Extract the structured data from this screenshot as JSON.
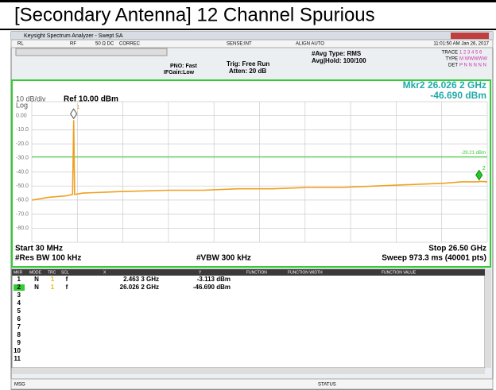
{
  "title": "[Secondary Antenna] 12 Channel Spurious",
  "window_title": "Keysight Spectrum Analyzer - Swept SA",
  "toolbar": [
    "RL",
    "RF",
    "50 Ω  DC",
    "CORREC",
    "SENSE:INT",
    "ALIGN AUTO",
    "11:01:50 AM Jan 26, 2017"
  ],
  "settings": {
    "pno": "PNO: Fast",
    "ifgain": "IFGain:Low",
    "trig": "Trig: Free Run",
    "atten": "Atten: 20 dB",
    "avg_type": "#Avg Type: RMS",
    "avg_hold": "Avg|Hold: 100/100"
  },
  "trace_info": {
    "trace": "TRACE",
    "trace_val": "1 2 3 4 5 6",
    "type": "TYPE",
    "type_val": "M WWWWW",
    "det": "DET",
    "det_val": "P N N N N N"
  },
  "chart_data": {
    "type": "line",
    "scale": "10 dB/div",
    "ref": "Ref 10.00 dBm",
    "log": "Log",
    "marker_readout": [
      "Mkr2 26.026 2 GHz",
      "-46.690 dBm"
    ],
    "x": [
      0.03,
      1,
      2,
      2.4,
      2.463,
      2.52,
      3,
      5,
      8,
      10,
      12,
      14,
      16,
      18,
      20,
      22,
      24,
      25,
      26,
      26.026,
      26.5
    ],
    "series": [
      {
        "color": "#f0a020",
        "values": [
          -60,
          -58,
          -57,
          -56,
          -3.113,
          -56,
          -55,
          -54,
          -53,
          -53,
          -52,
          -52,
          -51,
          -51,
          -50,
          -49,
          -48,
          -47,
          -47,
          -46.69,
          -47
        ]
      }
    ],
    "xlim": [
      0.03,
      26.5
    ],
    "ylim": [
      -90,
      10
    ],
    "yticks": [
      {
        "value": 0,
        "label": "0.00"
      },
      {
        "value": -10,
        "label": "-10.0"
      },
      {
        "value": -20,
        "label": "-20.0"
      },
      {
        "value": -30,
        "label": "-30.0"
      },
      {
        "value": -40,
        "label": "-40.0"
      },
      {
        "value": -50,
        "label": "-50.0"
      },
      {
        "value": -60,
        "label": "-60.0"
      },
      {
        "value": -70,
        "label": "-70.0"
      },
      {
        "value": -80,
        "label": "-80.0"
      }
    ],
    "grid": true,
    "display_line": {
      "value": -29.21,
      "label": "-29.21 dBm"
    },
    "markers": [
      {
        "label": "1",
        "x": 2.463,
        "y": -3.113,
        "color": "#f0a020"
      },
      {
        "label": "2",
        "x": 26.026,
        "y": -46.69,
        "color": "#22cc22"
      }
    ],
    "footer": {
      "start": "Start 30 MHz",
      "stop": "Stop 26.50 GHz",
      "rbw": "#Res BW 100 kHz",
      "vbw": "#VBW 300 kHz",
      "sweep": "Sweep  973.3 ms (40001 pts)"
    }
  },
  "marker_table": {
    "columns": [
      "MKR",
      "MODE",
      "TRC",
      "SCL",
      "X",
      "Y",
      "FUNCTION",
      "FUNCTION WIDTH",
      "FUNCTION VALUE"
    ],
    "rows": [
      [
        "1",
        "N",
        "1",
        "f",
        "2.463 3 GHz",
        "-3.113 dBm"
      ],
      [
        "2",
        "N",
        "1",
        "f",
        "26.026 2 GHz",
        "-46.690 dBm"
      ],
      [
        "3"
      ],
      [
        "4"
      ],
      [
        "5"
      ],
      [
        "6"
      ],
      [
        "7"
      ],
      [
        "8"
      ],
      [
        "9"
      ],
      [
        "10"
      ],
      [
        "11"
      ]
    ]
  },
  "bottom": {
    "msg": "MSG",
    "status": "STATUS"
  }
}
